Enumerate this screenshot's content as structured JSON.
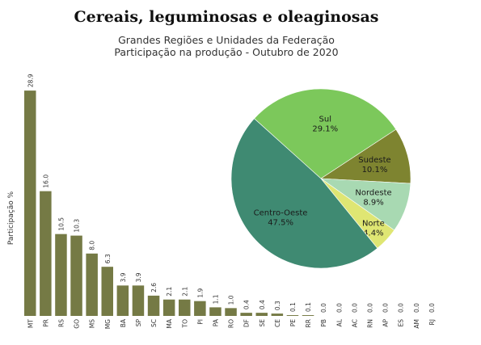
{
  "header": {
    "title": "Cereais, leguminosas e oleaginosas",
    "subtitle_line1": "Grandes Regiões e Unidades da Federação",
    "subtitle_line2": "Participação na produção - Outubro de 2020"
  },
  "colors": {
    "bar": "#757a45",
    "pie": {
      "Centro-Oeste": "#3f8a72",
      "Sul": "#7cc85b",
      "Sudeste": "#7e8430",
      "Nordeste": "#a8d9b2",
      "Norte": "#dfe673"
    }
  },
  "chart_data": [
    {
      "type": "bar",
      "ylabel": "Participação %",
      "categories": [
        "MT",
        "PR",
        "RS",
        "GO",
        "MS",
        "MG",
        "BA",
        "SP",
        "SC",
        "MA",
        "TO",
        "PI",
        "PA",
        "RO",
        "DF",
        "SE",
        "CE",
        "PE",
        "RR",
        "PB",
        "AL",
        "AC",
        "RN",
        "AP",
        "ES",
        "AM",
        "RJ"
      ],
      "values": [
        28.9,
        16.0,
        10.5,
        10.3,
        8.0,
        6.3,
        3.9,
        3.9,
        2.6,
        2.1,
        2.1,
        1.9,
        1.1,
        1.0,
        0.4,
        0.4,
        0.3,
        0.1,
        0.1,
        0.0,
        0.0,
        0.0,
        0.0,
        0.0,
        0.0,
        0.0,
        0.0
      ],
      "value_labels": [
        "28.9",
        "16.0",
        "10.5",
        "10.3",
        "8.0",
        "6.3",
        "3.9",
        "3.9",
        "2.6",
        "2.1",
        "2.1",
        "1.9",
        "1.1",
        "1.0",
        "0.4",
        "0.4",
        "0.3",
        "0.1",
        "0.1",
        "0.0",
        "0.0",
        "0.0",
        "0.0",
        "0.0",
        "0.0",
        "0.0",
        "0.0"
      ]
    },
    {
      "type": "pie",
      "slices": [
        {
          "label": "Sul",
          "value": 29.1,
          "value_label": "29.1%"
        },
        {
          "label": "Sudeste",
          "value": 10.1,
          "value_label": "10.1%"
        },
        {
          "label": "Nordeste",
          "value": 8.9,
          "value_label": "8.9%"
        },
        {
          "label": "Norte",
          "value": 4.4,
          "value_label": "4.4%"
        },
        {
          "label": "Centro-Oeste",
          "value": 47.5,
          "value_label": "47.5%"
        }
      ]
    }
  ]
}
